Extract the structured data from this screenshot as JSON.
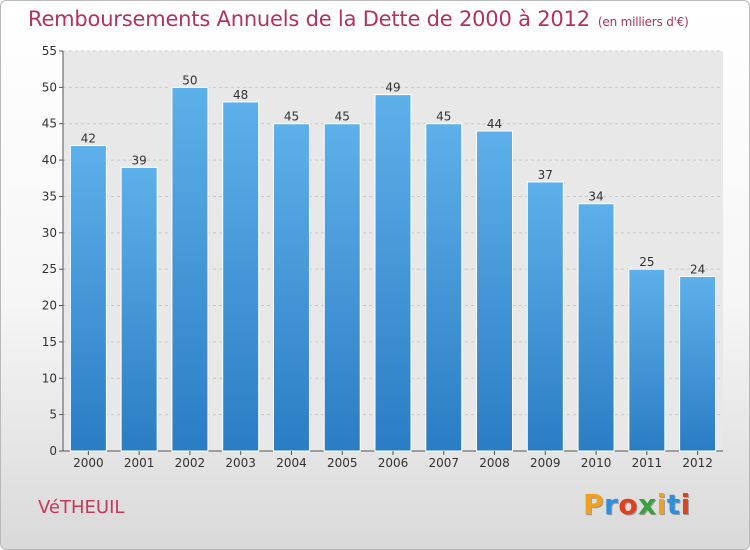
{
  "title": "Remboursements Annuels de la Dette de 2000 à 2012",
  "unit": "(en milliers d'€)",
  "commune": "VéTHEUIL",
  "logo_text": "Proxiti",
  "colors": {
    "title": "#b3325f",
    "bar_top": "#5eb0ea",
    "bar_bottom": "#2a7dc3",
    "logo": [
      "#f0a020",
      "#2f8fd8",
      "#e04020",
      "#3aa040",
      "#f0a020",
      "#2f8fd8",
      "#e04020"
    ]
  },
  "chart_data": {
    "type": "bar",
    "categories": [
      "2000",
      "2001",
      "2002",
      "2003",
      "2004",
      "2005",
      "2006",
      "2007",
      "2008",
      "2009",
      "2010",
      "2011",
      "2012"
    ],
    "values": [
      42,
      39,
      50,
      48,
      45,
      45,
      49,
      45,
      44,
      37,
      34,
      25,
      24
    ],
    "ylim": [
      0,
      55
    ],
    "yticks": [
      0,
      5,
      10,
      15,
      20,
      25,
      30,
      35,
      40,
      45,
      50,
      55
    ],
    "grid": true,
    "data_labels": true
  }
}
